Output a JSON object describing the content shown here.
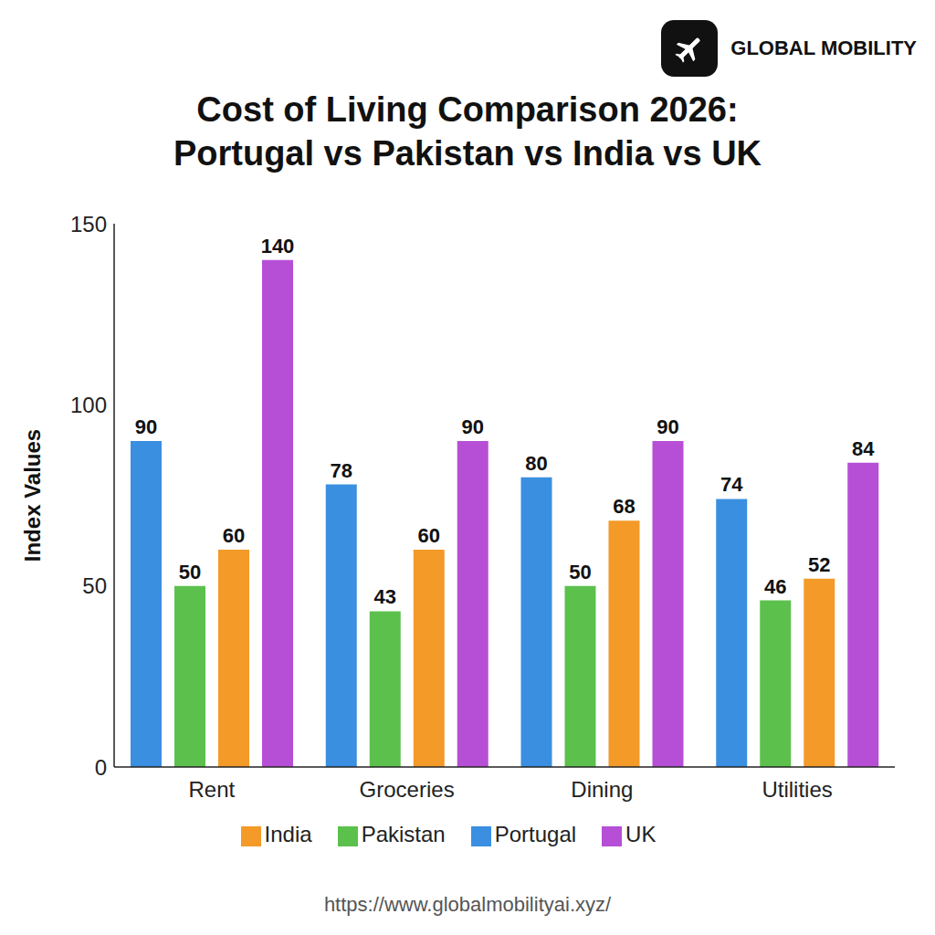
{
  "chart_data": {
    "type": "bar",
    "title": "Cost of Living Comparison 2026: Portugal vs Pakistan vs India vs UK",
    "y_label": "Index Values",
    "annotations": [
      "GLOBAL MOBILITY",
      "https://www.globalmobilityai.xyz/"
    ],
    "categories": [
      "Rent",
      "Groceries",
      "Dining",
      "Utilities"
    ],
    "series": [
      {
        "name": "Portugal",
        "color": "#3a8fe0",
        "values": [
          90,
          78,
          80,
          74
        ]
      },
      {
        "name": "Pakistan",
        "color": "#5cc14c",
        "values": [
          50,
          43,
          50,
          46
        ]
      },
      {
        "name": "India",
        "color": "#f39a28",
        "values": [
          60,
          60,
          68,
          52
        ]
      },
      {
        "name": "UK",
        "color": "#b64fd6",
        "values": [
          140,
          90,
          90,
          84
        ]
      }
    ],
    "ylim": [
      0,
      150
    ],
    "yticks": [
      0,
      50,
      100,
      150
    ],
    "grid": false,
    "legend": "bottom",
    "data_labels": true
  }
}
